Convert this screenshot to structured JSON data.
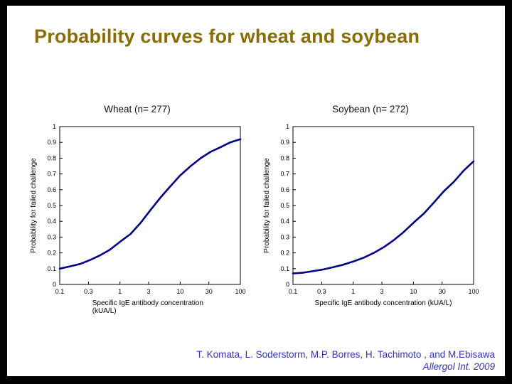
{
  "slide": {
    "title": "Probability curves for wheat and soybean",
    "title_color": "#8a6d00",
    "background_color": "#000000",
    "citation_line1": "T. Komata, L. Soderstorm, M.P. Borres, H. Tachimoto , and M.Ebisawa",
    "citation_line2": "Allergol Int. 2009",
    "citation_color": "#3333cc"
  },
  "chart_data": [
    {
      "type": "line",
      "title": "Wheat (n= 277)",
      "ylabel": "Probability for failed challenge",
      "xlabel_lines": [
        "Specific IgE antibody concentration",
        "(kUA/L)"
      ],
      "xscale": "log",
      "xlim": [
        0.1,
        100
      ],
      "ylim": [
        0,
        1
      ],
      "x_ticks": [
        0.1,
        0.3,
        1,
        3,
        10,
        30,
        100
      ],
      "x_tick_labels": [
        "0.1",
        "0.3",
        "1",
        "3",
        "10",
        "30",
        "100"
      ],
      "y_ticks": [
        0,
        0.1,
        0.2,
        0.3,
        0.4,
        0.5,
        0.6,
        0.7,
        0.8,
        0.9,
        1
      ],
      "y_tick_labels": [
        "0",
        "0.1",
        "0.2",
        "0.3",
        "0.4",
        "0.5",
        "0.6",
        "0.7",
        "0.8",
        "0.9",
        "1"
      ],
      "grid": false,
      "legend": "none",
      "line_color": "#00008b",
      "series": [
        {
          "name": "Wheat",
          "x": [
            0.1,
            0.15,
            0.22,
            0.32,
            0.47,
            0.68,
            1,
            1.5,
            2.2,
            3.2,
            4.7,
            6.8,
            10,
            15,
            22,
            32,
            47,
            68,
            100
          ],
          "y": [
            0.1,
            0.115,
            0.13,
            0.155,
            0.185,
            0.22,
            0.27,
            0.32,
            0.39,
            0.47,
            0.55,
            0.62,
            0.69,
            0.75,
            0.8,
            0.84,
            0.87,
            0.9,
            0.92
          ]
        }
      ]
    },
    {
      "type": "line",
      "title": "Soybean (n= 272)",
      "ylabel": "Probability for failed challenge",
      "xlabel_lines": [
        "Specific IgE antibody concentration (kUA/L)"
      ],
      "xscale": "log",
      "xlim": [
        0.1,
        100
      ],
      "ylim": [
        0,
        1
      ],
      "x_ticks": [
        0.1,
        0.3,
        1,
        3,
        10,
        30,
        100
      ],
      "x_tick_labels": [
        "0.1",
        "0.3",
        "1",
        "3",
        "10",
        "30",
        "100"
      ],
      "y_ticks": [
        0,
        0.1,
        0.2,
        0.3,
        0.4,
        0.5,
        0.6,
        0.7,
        0.8,
        0.9,
        1
      ],
      "y_tick_labels": [
        "0",
        "0.1",
        "0.2",
        "0.3",
        "0.4",
        "0.5",
        "0.6",
        "0.7",
        "0.8",
        "0.9",
        "1"
      ],
      "grid": false,
      "legend": "none",
      "line_color": "#00008b",
      "series": [
        {
          "name": "Soybean",
          "x": [
            0.1,
            0.15,
            0.22,
            0.32,
            0.47,
            0.68,
            1,
            1.5,
            2.2,
            3.2,
            4.7,
            6.8,
            10,
            15,
            22,
            32,
            47,
            68,
            100
          ],
          "y": [
            0.07,
            0.075,
            0.085,
            0.095,
            0.11,
            0.125,
            0.145,
            0.17,
            0.2,
            0.235,
            0.28,
            0.33,
            0.39,
            0.45,
            0.52,
            0.59,
            0.65,
            0.72,
            0.78
          ]
        }
      ]
    }
  ]
}
